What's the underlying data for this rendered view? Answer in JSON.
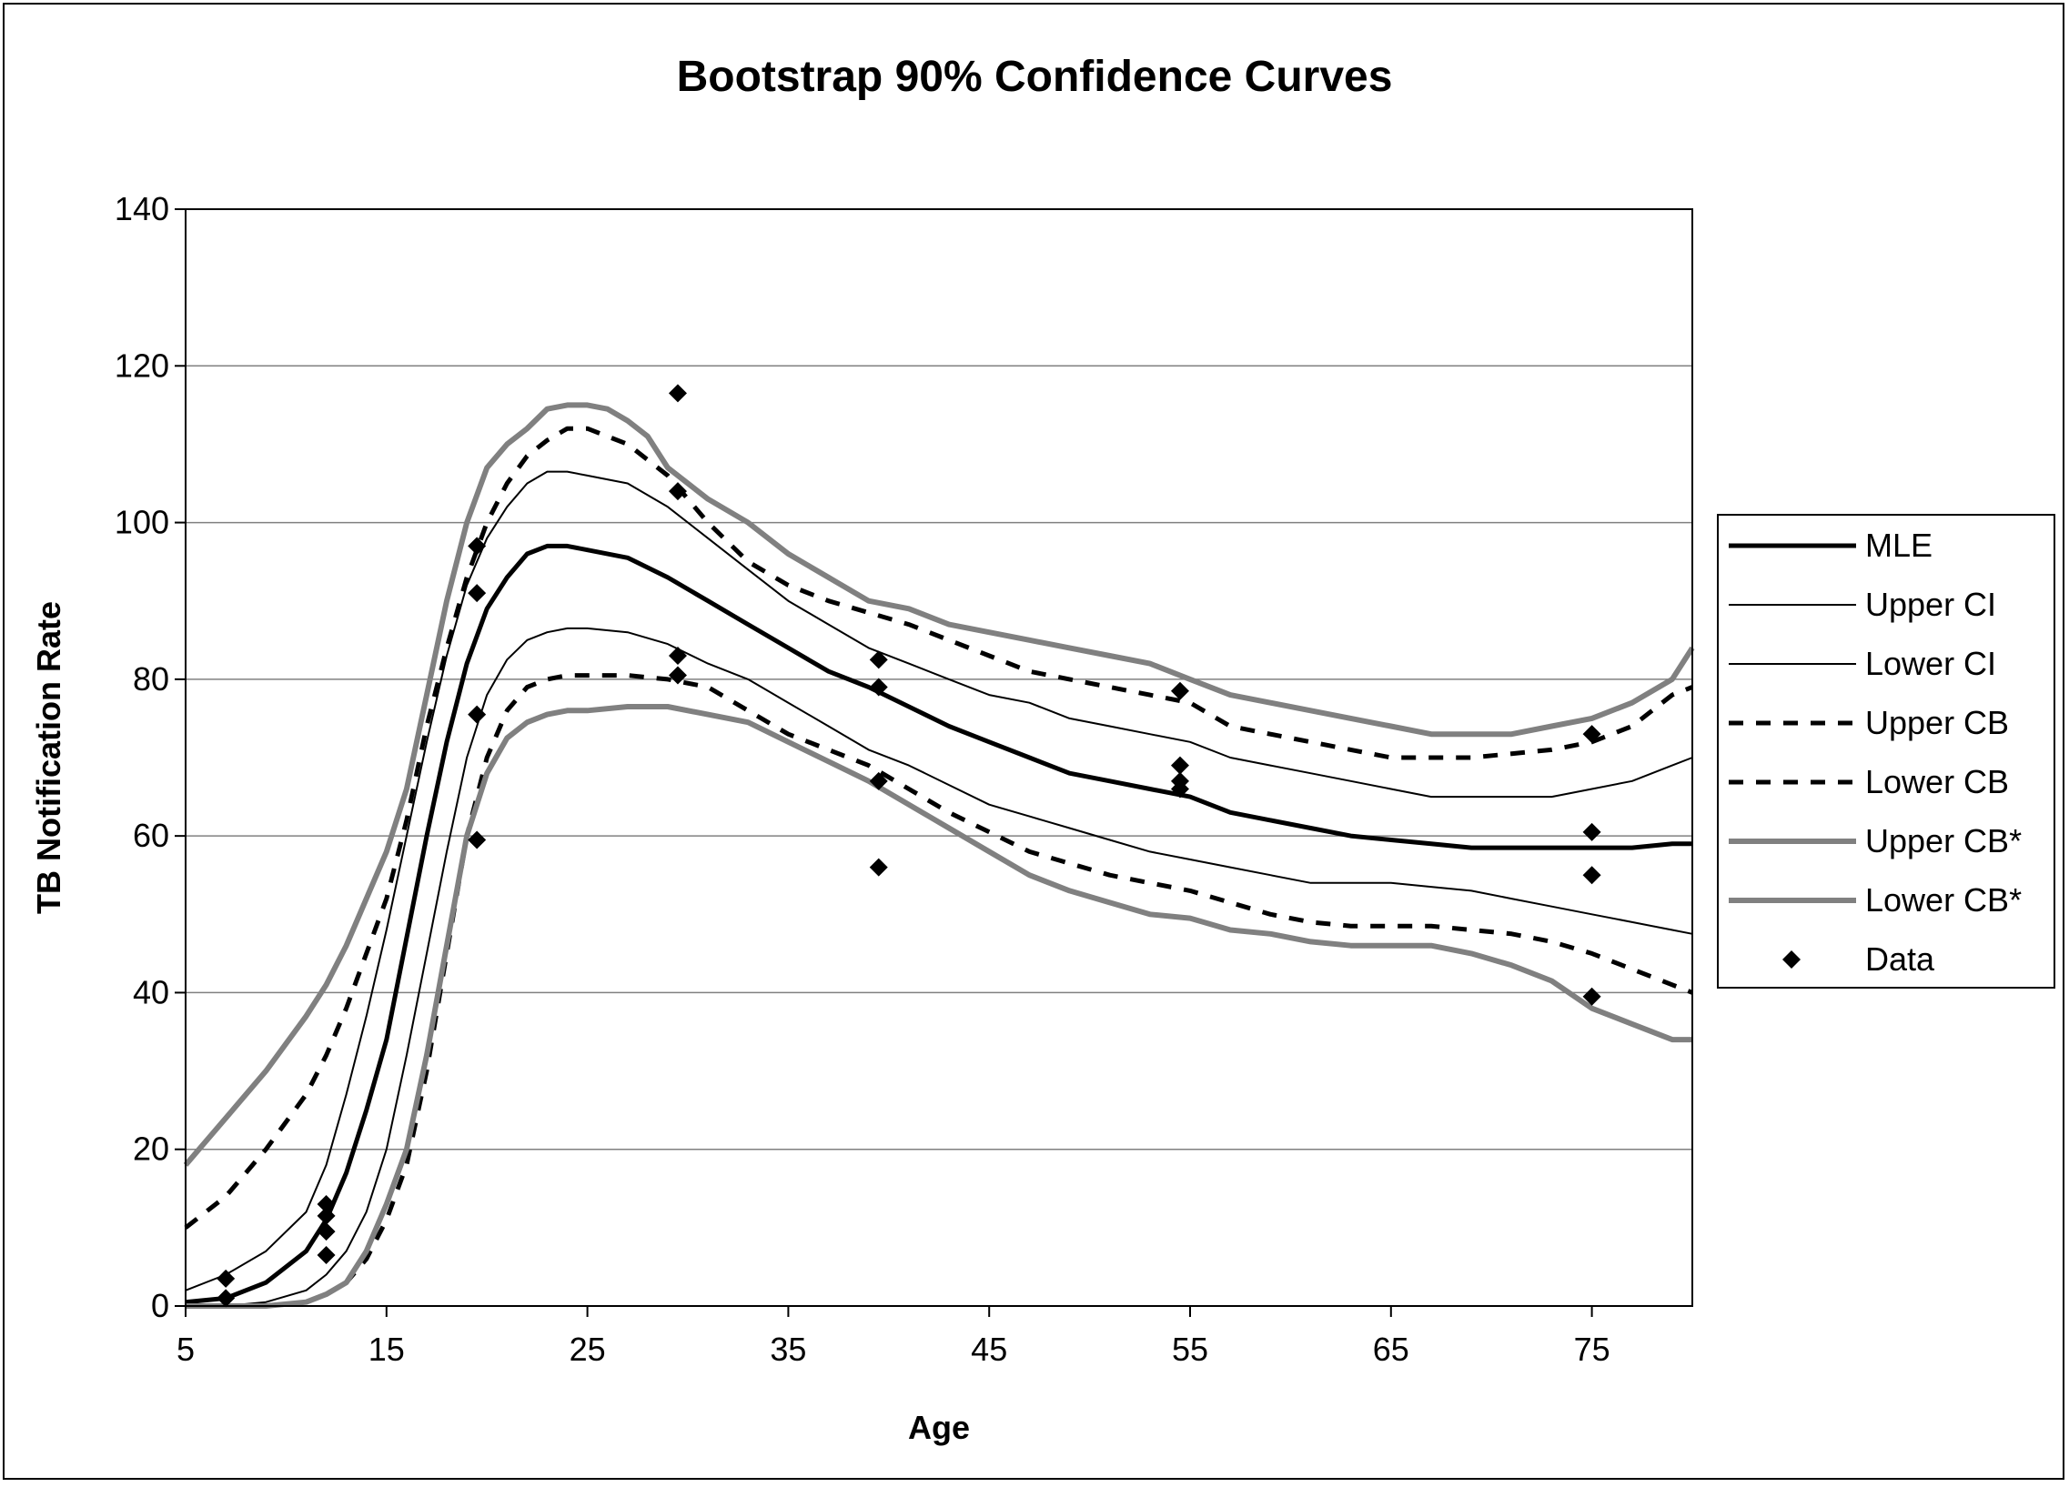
{
  "chart_data": {
    "type": "line",
    "title": "Bootstrap 90% Confidence Curves",
    "xlabel": "Age",
    "ylabel": "TB Notification Rate",
    "xlim": [
      5,
      80
    ],
    "ylim": [
      0,
      140
    ],
    "x_ticks": [
      5,
      15,
      25,
      35,
      45,
      55,
      65,
      75
    ],
    "y_ticks": [
      0,
      20,
      40,
      60,
      80,
      100,
      120,
      140
    ],
    "grid": "horizontal",
    "legend_position": "right",
    "series": [
      {
        "name": "MLE",
        "style": "solid-thick",
        "color": "#000000",
        "x": [
          5,
          7,
          9,
          11,
          12,
          13,
          14,
          15,
          16,
          17,
          18,
          19,
          20,
          21,
          22,
          23,
          24,
          25,
          27,
          29,
          31,
          33,
          35,
          37,
          39,
          41,
          43,
          45,
          47,
          49,
          51,
          53,
          55,
          57,
          59,
          61,
          63,
          65,
          67,
          69,
          71,
          73,
          75,
          77,
          79,
          80
        ],
        "y": [
          0.5,
          1,
          3,
          7,
          11,
          17,
          25,
          34,
          47,
          60,
          72,
          82,
          89,
          93,
          96,
          97,
          97,
          96.5,
          95.5,
          93,
          90,
          87,
          84,
          81,
          79,
          76.5,
          74,
          72,
          70,
          68,
          67,
          66,
          65,
          63,
          62,
          61,
          60,
          59.5,
          59,
          58.5,
          58.5,
          58.5,
          58.5,
          58.5,
          59,
          59
        ]
      },
      {
        "name": "Upper CI",
        "style": "solid-thin",
        "color": "#000000",
        "x": [
          5,
          7,
          9,
          11,
          12,
          13,
          14,
          15,
          16,
          17,
          18,
          19,
          20,
          21,
          22,
          23,
          24,
          25,
          27,
          29,
          31,
          33,
          35,
          37,
          39,
          41,
          43,
          45,
          47,
          49,
          51,
          53,
          55,
          57,
          59,
          61,
          63,
          65,
          67,
          69,
          71,
          73,
          75,
          77,
          79,
          80
        ],
        "y": [
          2,
          4,
          7,
          12,
          18,
          27,
          37,
          48,
          60,
          72,
          83,
          92,
          98,
          102,
          105,
          106.5,
          106.5,
          106,
          105,
          102,
          98,
          94,
          90,
          87,
          84,
          82,
          80,
          78,
          77,
          75,
          74,
          73,
          72,
          70,
          69,
          68,
          67,
          66,
          65,
          65,
          65,
          65,
          66,
          67,
          69,
          70
        ]
      },
      {
        "name": "Lower CI",
        "style": "solid-thin",
        "color": "#000000",
        "x": [
          5,
          7,
          9,
          11,
          12,
          13,
          14,
          15,
          16,
          17,
          18,
          19,
          20,
          21,
          22,
          23,
          24,
          25,
          27,
          29,
          31,
          33,
          35,
          37,
          39,
          41,
          43,
          45,
          47,
          49,
          51,
          53,
          55,
          57,
          59,
          61,
          63,
          65,
          67,
          69,
          71,
          73,
          75,
          77,
          79,
          80
        ],
        "y": [
          0,
          0,
          0.5,
          2,
          4,
          7,
          12,
          20,
          32,
          45,
          58,
          70,
          78,
          82.5,
          85,
          86,
          86.5,
          86.5,
          86,
          84.5,
          82,
          80,
          77,
          74,
          71,
          69,
          66.5,
          64,
          62.5,
          61,
          59.5,
          58,
          57,
          56,
          55,
          54,
          54,
          54,
          53.5,
          53,
          52,
          51,
          50,
          49,
          48,
          47.5
        ]
      },
      {
        "name": "Upper CB",
        "style": "dashed",
        "color": "#000000",
        "x": [
          5,
          7,
          9,
          11,
          12,
          13,
          14,
          15,
          16,
          17,
          18,
          19,
          20,
          21,
          22,
          23,
          24,
          25,
          27,
          29,
          31,
          33,
          35,
          37,
          39,
          41,
          43,
          45,
          47,
          49,
          51,
          53,
          55,
          57,
          59,
          61,
          63,
          65,
          67,
          69,
          71,
          73,
          75,
          77,
          79,
          80
        ],
        "y": [
          10,
          14,
          20,
          27,
          32,
          38,
          45,
          52,
          62,
          74,
          84,
          93,
          100,
          105,
          108.5,
          110.5,
          112,
          112,
          110,
          106,
          100,
          95,
          92,
          90,
          88.5,
          87,
          85,
          83,
          81,
          80,
          79,
          78,
          77,
          74,
          73,
          72,
          71,
          70,
          70,
          70,
          70.5,
          71,
          72,
          74,
          78,
          79
        ]
      },
      {
        "name": "Lower CB",
        "style": "dashed",
        "color": "#000000",
        "x": [
          5,
          7,
          9,
          11,
          12,
          13,
          14,
          15,
          16,
          17,
          18,
          19,
          20,
          21,
          22,
          23,
          24,
          25,
          27,
          29,
          31,
          33,
          35,
          37,
          39,
          41,
          43,
          45,
          47,
          49,
          51,
          53,
          55,
          57,
          59,
          61,
          63,
          65,
          67,
          69,
          71,
          73,
          75,
          77,
          79,
          80
        ],
        "y": [
          0,
          0,
          0,
          0.5,
          1.5,
          3,
          6,
          11,
          18,
          30,
          45,
          60,
          70,
          76,
          79,
          80,
          80.5,
          80.5,
          80.5,
          80,
          79,
          76,
          73,
          71,
          69,
          66,
          63,
          60.5,
          58,
          56.5,
          55,
          54,
          53,
          51.5,
          50,
          49,
          48.5,
          48.5,
          48.5,
          48,
          47.5,
          46.5,
          45,
          43,
          41,
          40
        ]
      },
      {
        "name": "Upper CB*",
        "style": "solid-thick-gray",
        "color": "#808080",
        "x": [
          5,
          7,
          9,
          11,
          12,
          13,
          14,
          15,
          16,
          17,
          18,
          19,
          20,
          21,
          22,
          23,
          24,
          25,
          26,
          27,
          28,
          29,
          31,
          33,
          35,
          37,
          39,
          41,
          43,
          45,
          47,
          49,
          51,
          53,
          55,
          57,
          59,
          61,
          63,
          65,
          67,
          69,
          71,
          73,
          75,
          77,
          79,
          80
        ],
        "y": [
          18,
          24,
          30,
          37,
          41,
          46,
          52,
          58,
          66,
          78,
          90,
          100,
          107,
          110,
          112,
          114.5,
          115,
          115,
          114.5,
          113,
          111,
          107,
          103,
          100,
          96,
          93,
          90,
          89,
          87,
          86,
          85,
          84,
          83,
          82,
          80,
          78,
          77,
          76,
          75,
          74,
          73,
          73,
          73,
          74,
          75,
          77,
          80,
          84
        ]
      },
      {
        "name": "Lower CB*",
        "style": "solid-thick-gray",
        "color": "#808080",
        "x": [
          5,
          7,
          9,
          11,
          12,
          13,
          14,
          15,
          16,
          17,
          18,
          19,
          20,
          21,
          22,
          23,
          24,
          25,
          27,
          29,
          31,
          33,
          35,
          37,
          39,
          41,
          43,
          45,
          47,
          49,
          51,
          53,
          55,
          57,
          59,
          61,
          63,
          65,
          67,
          69,
          71,
          73,
          75,
          77,
          79,
          80
        ],
        "y": [
          0,
          0,
          0,
          0.5,
          1.5,
          3,
          7,
          13,
          20,
          32,
          46,
          60,
          68,
          72.5,
          74.5,
          75.5,
          76,
          76,
          76.5,
          76.5,
          75.5,
          74.5,
          72,
          69.5,
          67,
          64,
          61,
          58,
          55,
          53,
          51.5,
          50,
          49.5,
          48,
          47.5,
          46.5,
          46,
          46,
          46,
          45,
          43.5,
          41.5,
          38,
          36,
          34,
          34
        ]
      }
    ],
    "scatter": {
      "name": "Data",
      "marker": "diamond",
      "x": [
        7,
        7,
        12,
        12,
        12,
        12,
        19.5,
        19.5,
        19.5,
        19.5,
        29.5,
        29.5,
        29.5,
        29.5,
        39.5,
        39.5,
        39.5,
        39.5,
        54.5,
        54.5,
        54.5,
        54.5,
        75,
        75,
        75,
        75
      ],
      "y": [
        3.5,
        1,
        13,
        11.5,
        9.5,
        6.5,
        97,
        91,
        75.5,
        59.5,
        116.5,
        104,
        83,
        80.5,
        82.5,
        79,
        67,
        56,
        78.5,
        69,
        67,
        66,
        73,
        60.5,
        55,
        39.5
      ]
    }
  }
}
